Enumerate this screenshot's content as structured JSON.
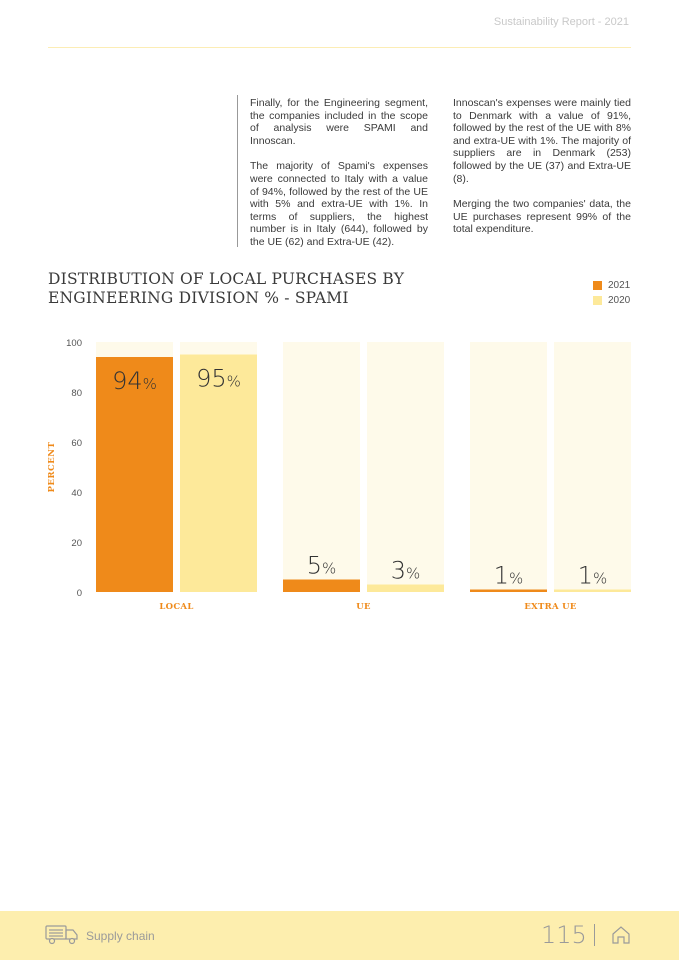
{
  "header": {
    "report_title": "Sustainability Report - 2021"
  },
  "body_text": {
    "col1": [
      "Finally, for the Engineering segment, the companies included in the scope of analysis were SPAMI and Innoscan.",
      "The majority of Spami's expenses were connected to Italy with a value of 94%, followed by the rest of the UE with 5% and extra-UE with 1%. In terms of suppliers, the highest number is in Italy (644), followed by the UE (62) and Extra-UE (42)."
    ],
    "col2": [
      "Innoscan's expenses were mainly tied to Denmark with a value of 91%, followed by the rest of the UE with 8% and extra-UE with 1%. The majority of suppliers are in Denmark (253) followed by the UE (37) and Extra-UE (8).",
      "Merging the two companies' data, the UE purchases represent 99% of the total expenditure."
    ]
  },
  "chart_data": {
    "type": "bar",
    "title": "DISTRIBUTION OF LOCAL PURCHASES BY ENGINEERING DIVISION % - SPAMI",
    "categories": [
      "LOCAL",
      "UE",
      "EXTRA UE"
    ],
    "series": [
      {
        "name": "2021",
        "values": [
          94,
          5,
          1
        ],
        "color": "#ef8a1a"
      },
      {
        "name": "2020",
        "values": [
          95,
          3,
          1
        ],
        "color": "#fde99a"
      }
    ],
    "ylabel": "PERCENT",
    "ylim": [
      0,
      100
    ],
    "yticks": [
      0,
      20,
      40,
      60,
      80,
      100
    ],
    "value_suffix": "%",
    "background_bar_color": "#fefaea",
    "legend_position": "top-right"
  },
  "footer": {
    "section": "Supply chain",
    "page_number": "115"
  },
  "icons": {
    "footer_left": "truck-icon",
    "footer_right": "home-icon"
  }
}
